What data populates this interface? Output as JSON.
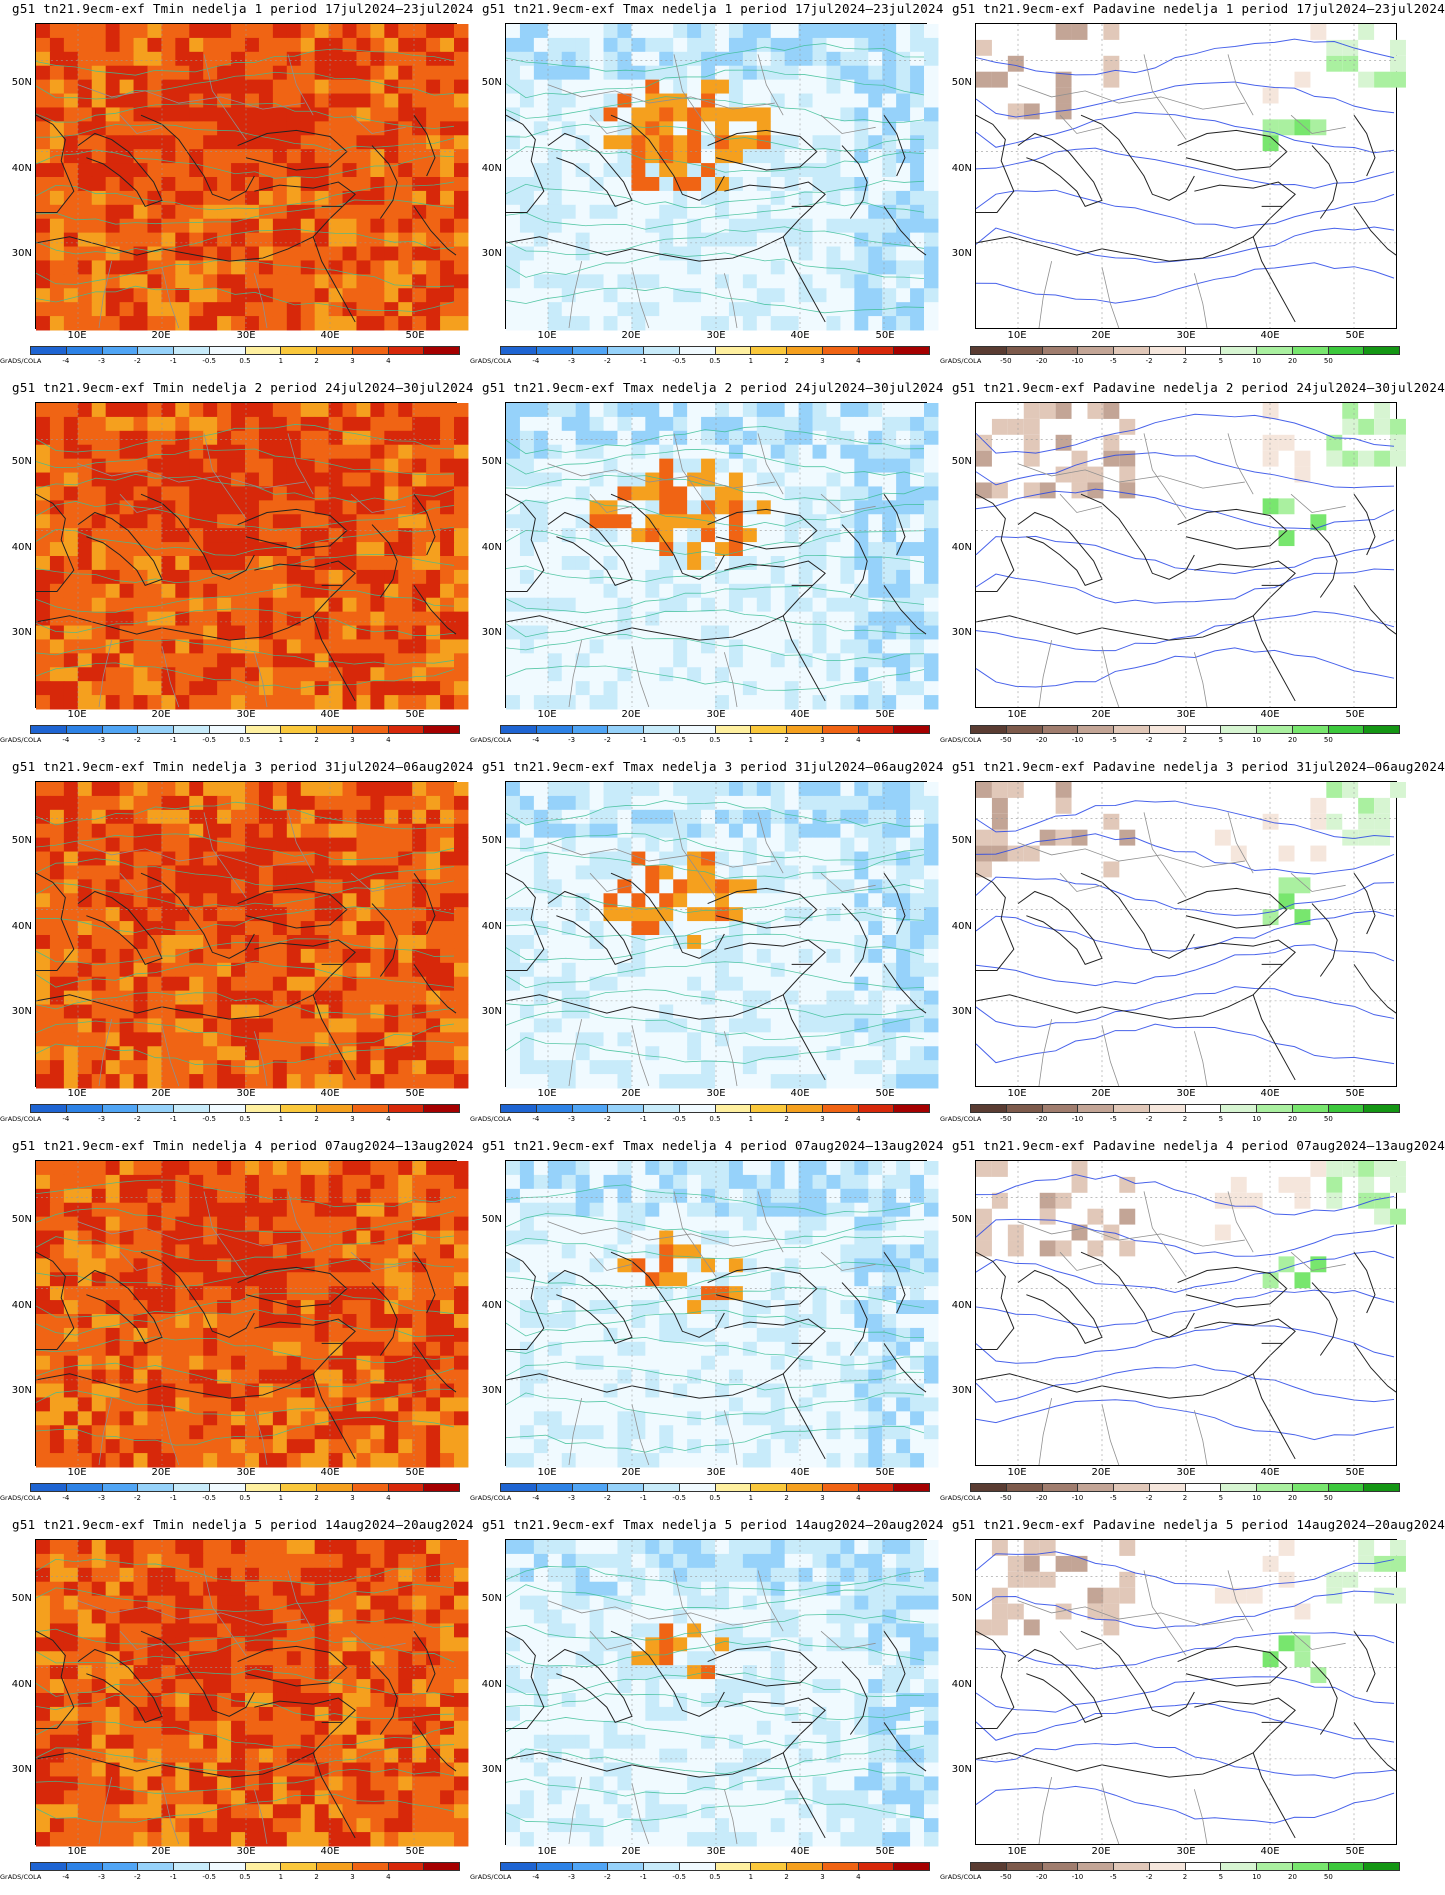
{
  "credit": "GrADS/COLA",
  "lat_labels": [
    "50N",
    "40N",
    "30N"
  ],
  "lon_labels": [
    "10E",
    "20E",
    "30E",
    "40E",
    "50E"
  ],
  "colorbars": {
    "temp": {
      "ticks": [
        "-4",
        "-3",
        "-2",
        "-1",
        "-0.5",
        "0.5",
        "1",
        "2",
        "3",
        "4"
      ],
      "colors": [
        "#1e64d2",
        "#2d82e6",
        "#50a5f5",
        "#96d2fa",
        "#c8ebfa",
        "#f0faff",
        "#fff0a0",
        "#fac83c",
        "#f5a01e",
        "#f06414",
        "#d7280a",
        "#a50000"
      ]
    },
    "precip": {
      "ticks": [
        "-50",
        "-20",
        "-10",
        "-5",
        "-2",
        "2",
        "5",
        "10",
        "20",
        "50"
      ],
      "colors": [
        "#5a3c32",
        "#7d5a4b",
        "#a07d6e",
        "#c3a596",
        "#e1c8b9",
        "#f5e6dc",
        "#ffffff",
        "#d7f5d2",
        "#aaf0a0",
        "#78e66e",
        "#3cc83c",
        "#149614"
      ]
    }
  },
  "weeks": [
    {
      "tmin_title": "g51  tn21.9ecm-exf  Tmin  nedelja  1  period  17jul2024–23jul2024",
      "tmax_title": "g51  tn21.9ecm-exf  Tmax  nedelja  1  period  17jul2024–23jul2024",
      "pad_title": "g51  tn21.9ecm-exf  Padavine  nedelja  1  period  17jul2024–23jul2024"
    },
    {
      "tmin_title": "g51  tn21.9ecm-exf  Tmin  nedelja  2  period  24jul2024–30jul2024",
      "tmax_title": "g51  tn21.9ecm-exf  Tmax  nedelja  2  period  24jul2024–30jul2024",
      "pad_title": "g51  tn21.9ecm-exf  Padavine  nedelja  2  period  24jul2024–30jul2024"
    },
    {
      "tmin_title": "g51  tn21.9ecm-exf  Tmin  nedelja  3  period  31jul2024–06aug2024",
      "tmax_title": "g51  tn21.9ecm-exf  Tmax  nedelja  3  period  31jul2024–06aug2024",
      "pad_title": "g51  tn21.9ecm-exf  Padavine  nedelja  3  period  31jul2024–06aug2024"
    },
    {
      "tmin_title": "g51  tn21.9ecm-exf  Tmin  nedelja  4  period  07aug2024–13aug2024",
      "tmax_title": "g51  tn21.9ecm-exf  Tmax  nedelja  4  period  07aug2024–13aug2024",
      "pad_title": "g51  tn21.9ecm-exf  Padavine  nedelja  4  period  07aug2024–13aug2024"
    },
    {
      "tmin_title": "g51  tn21.9ecm-exf  Tmin  nedelja  5  period  14aug2024–20aug2024",
      "tmax_title": "g51  tn21.9ecm-exf  Tmax  nedelja  5  period  14aug2024–20aug2024",
      "pad_title": "g51  tn21.9ecm-exf  Padavine  nedelja  5  period  14aug2024–20aug2024"
    }
  ]
}
